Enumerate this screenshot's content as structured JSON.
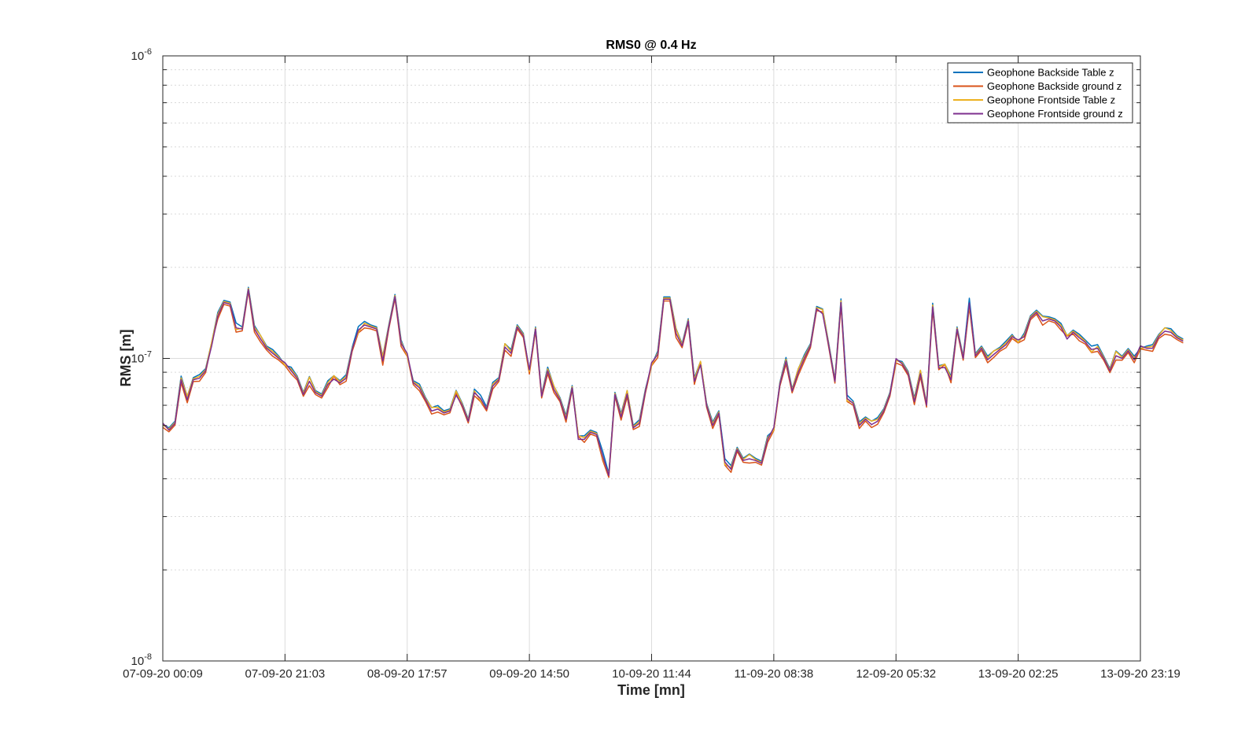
{
  "chart_data": {
    "type": "line",
    "title": "RMS0 @ 0.4 Hz",
    "xlabel": "Time [mn]",
    "ylabel": "RMS [m]",
    "yscale": "log",
    "ylim": [
      1e-08,
      1e-06
    ],
    "y_ticks": [
      {
        "value": 1e-08,
        "base": "10",
        "exp": "-8"
      },
      {
        "value": 1e-07,
        "base": "10",
        "exp": "-7"
      },
      {
        "value": 1e-06,
        "base": "10",
        "exp": "-6"
      }
    ],
    "x_ticks": [
      "07-09-20 00:09",
      "07-09-20 21:03",
      "08-09-20 17:57",
      "09-09-20 14:50",
      "10-09-20 11:44",
      "11-09-20 08:38",
      "12-09-20 05:32",
      "13-09-20 02:25",
      "13-09-20 23:19"
    ],
    "grid": true,
    "legend_position": "top-right",
    "x_index_range": [
      0,
      160
    ],
    "series": [
      {
        "name": "Geophone Backside Table z",
        "color": "#0072BD",
        "offset": 0.012
      },
      {
        "name": "Geophone Backside ground z",
        "color": "#D95319",
        "offset": -0.01
      },
      {
        "name": "Geophone Frontside Table z",
        "color": "#EDB120",
        "offset": 0.006
      },
      {
        "name": "Geophone Frontside ground z",
        "color": "#7E2F8E",
        "offset": 0.0
      }
    ],
    "base_values": [
      6e-08,
      5.8e-08,
      6.1e-08,
      8.5e-08,
      7.3e-08,
      8.5e-08,
      8.6e-08,
      9.1e-08,
      1.12e-07,
      1.38e-07,
      1.53e-07,
      1.51e-07,
      1.25e-07,
      1.25e-07,
      1.69e-07,
      1.25e-07,
      1.17e-07,
      1.08e-07,
      1.04e-07,
      1e-07,
      9.5e-08,
      9.1e-08,
      8.6e-08,
      7.6e-08,
      8.4e-08,
      7.7e-08,
      7.5e-08,
      8.2e-08,
      8.7e-08,
      8.3e-08,
      8.6e-08,
      1.07e-07,
      1.23e-07,
      1.29e-07,
      1.27e-07,
      1.25e-07,
      9.9e-08,
      1.27e-07,
      1.6e-07,
      1.12e-07,
      1.02e-07,
      8.3e-08,
      8e-08,
      7.3e-08,
      6.7e-08,
      6.8e-08,
      6.6e-08,
      6.7e-08,
      7.7e-08,
      7e-08,
      6.2e-08,
      7.7e-08,
      7.3e-08,
      6.8e-08,
      8.1e-08,
      8.5e-08,
      1.1e-07,
      1.04e-07,
      1.27e-07,
      1.19e-07,
      9e-08,
      1.25e-07,
      7.5e-08,
      9.1e-08,
      7.9e-08,
      7.3e-08,
      6.3e-08,
      8e-08,
      5.5e-08,
      5.4e-08,
      5.7e-08,
      5.6e-08,
      4.7e-08,
      4.1e-08,
      7.6e-08,
      6.4e-08,
      7.7e-08,
      5.9e-08,
      6.1e-08,
      7.8e-08,
      9.5e-08,
      1.03e-07,
      1.57e-07,
      1.57e-07,
      1.21e-07,
      1.1e-07,
      1.33e-07,
      8.4e-08,
      9.7e-08,
      7e-08,
      6e-08,
      6.6e-08,
      4.5e-08,
      4.3e-08,
      5e-08,
      4.6e-08,
      4.7e-08,
      4.6e-08,
      4.5e-08,
      5.4e-08,
      5.8e-08,
      8.2e-08,
      9.8e-08,
      7.8e-08,
      9e-08,
      1e-07,
      1.1e-07,
      1.46e-07,
      1.43e-07,
      1.1e-07,
      8.4e-08,
      1.53e-07,
      7.3e-08,
      7.1e-08,
      6e-08,
      6.3e-08,
      6.1e-08,
      6.2e-08,
      6.7e-08,
      7.6e-08,
      9.8e-08,
      9.6e-08,
      8.9e-08,
      7.2e-08,
      8.9e-08,
      7e-08,
      1.48e-07,
      9.3e-08,
      9.5e-08,
      8.5e-08,
      1.25e-07,
      1e-07,
      1.51e-07,
      1.02e-07,
      1.08e-07,
      9.9e-08,
      1.04e-07,
      1.07e-07,
      1.11e-07,
      1.18e-07,
      1.13e-07,
      1.18e-07,
      1.36e-07,
      1.42e-07,
      1.33e-07,
      1.35e-07,
      1.33e-07,
      1.27e-07,
      1.18e-07,
      1.22e-07,
      1.17e-07,
      1.13e-07,
      1.06e-07,
      1.08e-07,
      1e-07,
      9.1e-08,
      1.03e-07,
      1e-07,
      1.06e-07,
      9.9e-08,
      1.08e-07,
      1.08e-07,
      1.08e-07,
      1.18e-07,
      1.23e-07,
      1.22e-07,
      1.17e-07,
      1.14e-07
    ]
  }
}
